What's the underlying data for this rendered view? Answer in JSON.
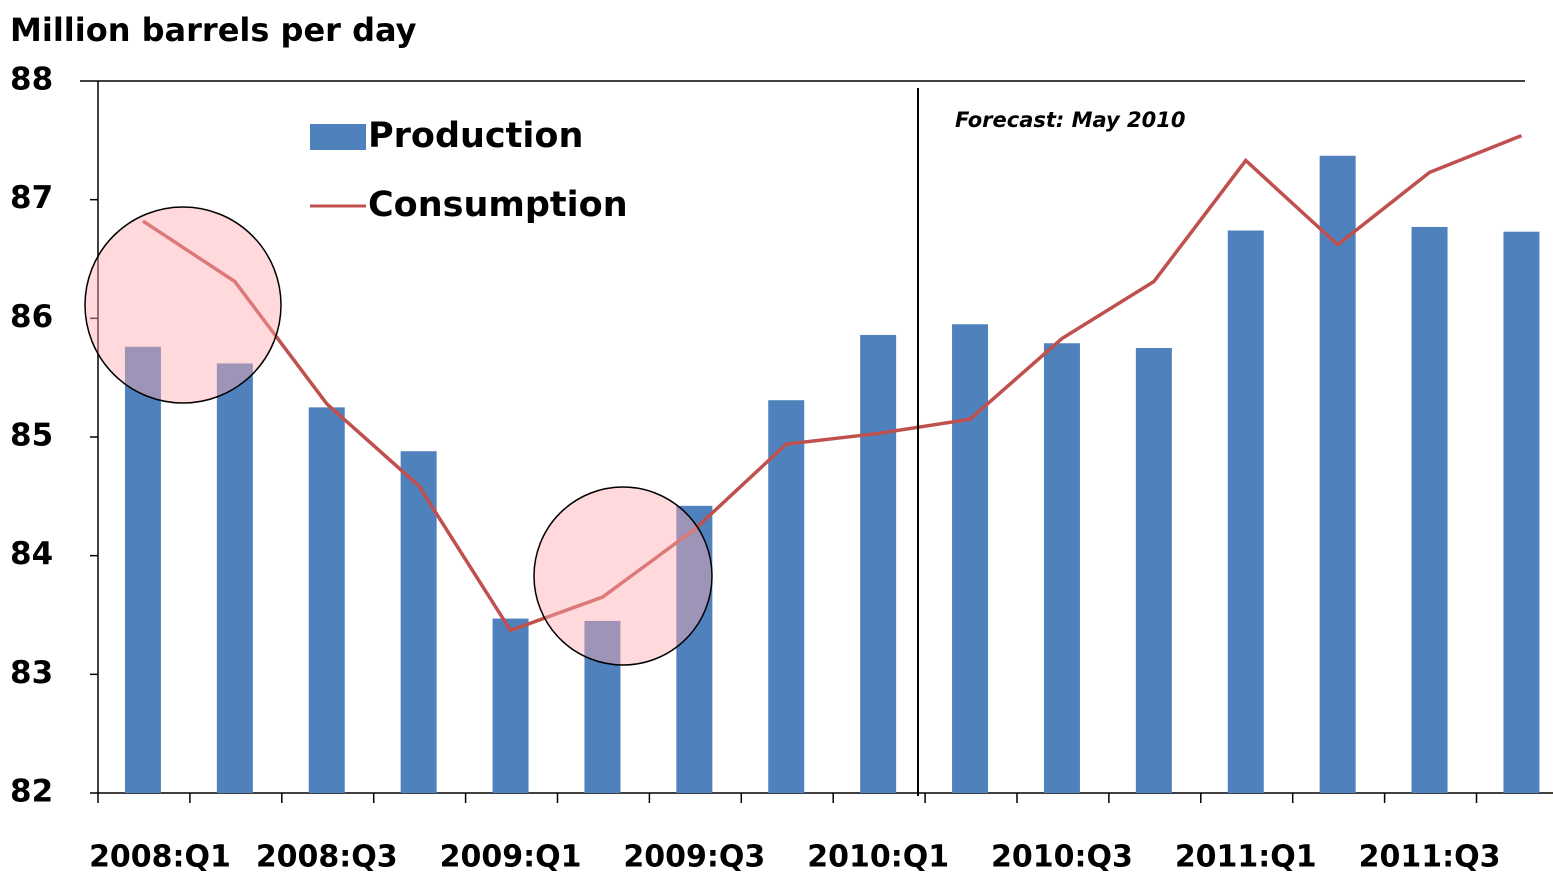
{
  "chart_data": {
    "type": "bar",
    "title": "Million barrels per day",
    "annotation": "Forecast: May 2010",
    "categories": [
      "2008:Q1",
      null,
      "2008:Q3",
      null,
      "2009:Q1",
      null,
      "2009:Q3",
      null,
      "2010:Q1",
      null,
      "2010:Q3",
      null,
      "2011:Q1",
      null,
      "2011:Q3",
      null
    ],
    "series": [
      {
        "name": "Production",
        "type": "bar",
        "color": "#4f81bd",
        "values": [
          85.76,
          85.62,
          85.25,
          84.88,
          83.47,
          83.45,
          84.42,
          85.31,
          85.86,
          85.95,
          85.79,
          85.75,
          86.74,
          87.37,
          86.77,
          86.73
        ]
      },
      {
        "name": "Consumption",
        "type": "line",
        "color": "#c0504d",
        "values": [
          86.82,
          86.31,
          85.28,
          84.59,
          83.37,
          83.65,
          84.22,
          84.94,
          85.03,
          85.15,
          85.83,
          86.31,
          87.33,
          86.62,
          87.23,
          87.54
        ]
      }
    ],
    "ylim": [
      82,
      88
    ],
    "yticks": [
      82,
      83,
      84,
      85,
      86,
      87,
      88
    ],
    "grid": false,
    "legend": "top-left"
  }
}
